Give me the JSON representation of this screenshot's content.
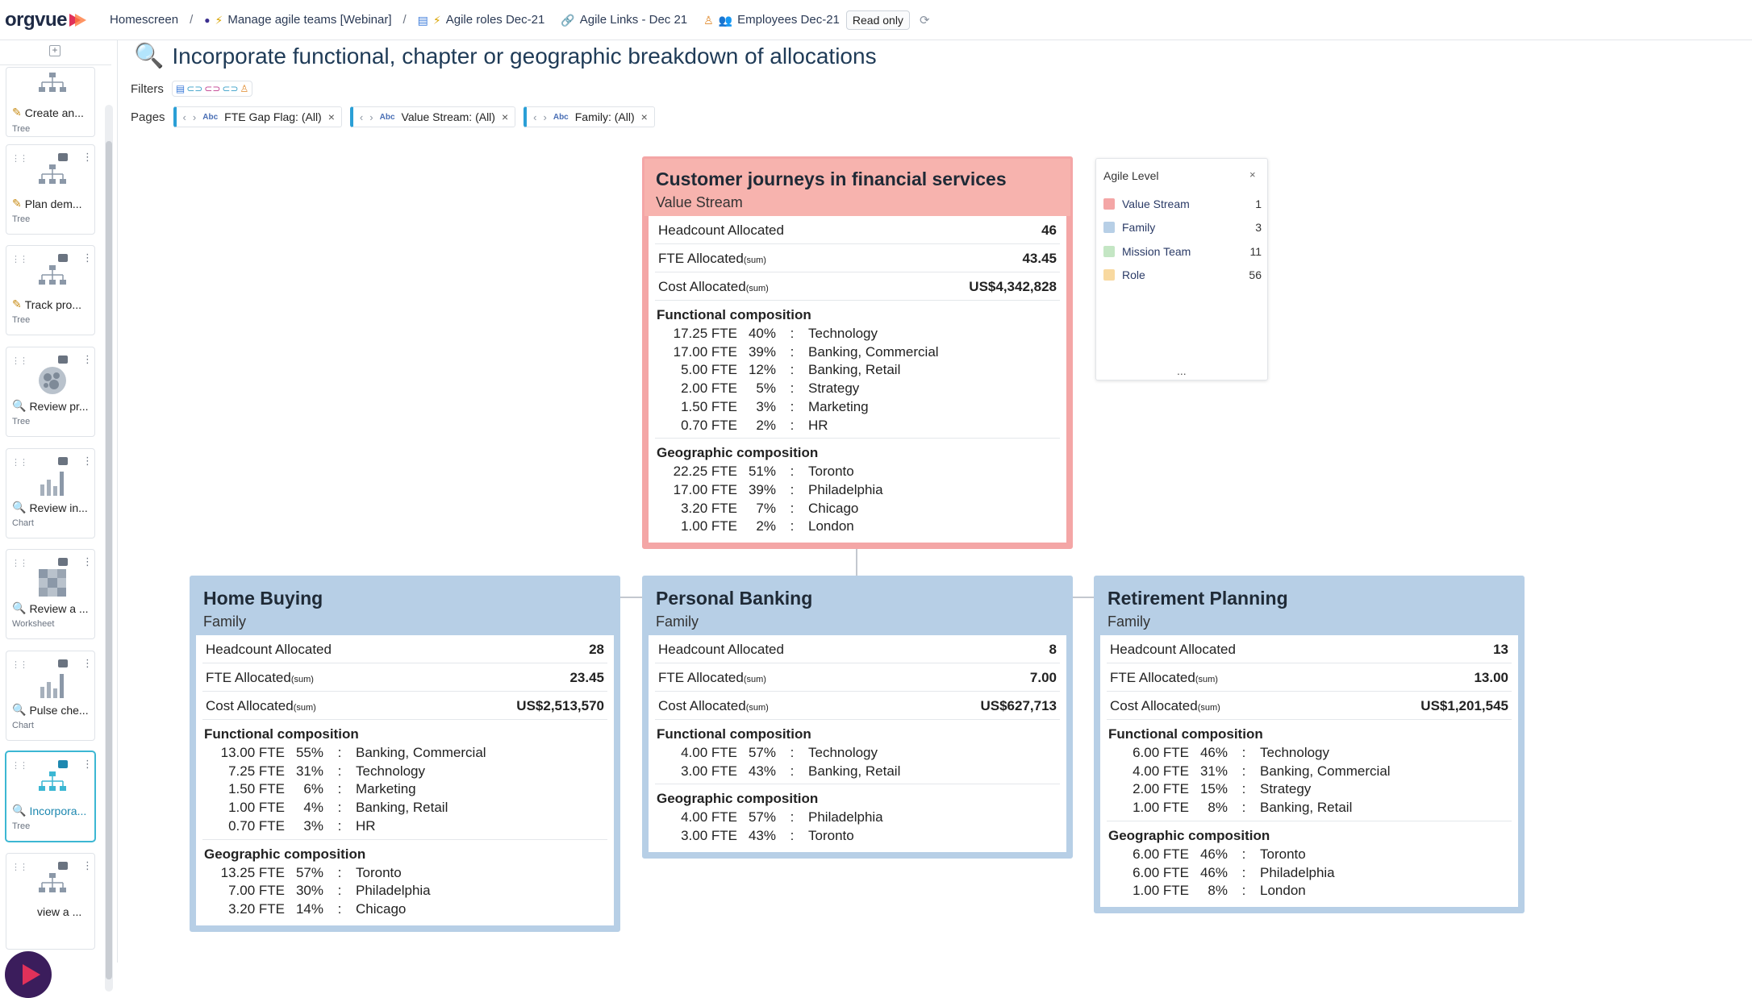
{
  "topbar": {
    "logo": "orgvue",
    "crumbs": [
      {
        "label": "Homescreen",
        "icon": "none"
      },
      {
        "label": "Manage agile teams [Webinar]",
        "icon": "dot-icon"
      },
      {
        "label": "Agile roles Dec-21",
        "icon": "dataset-icon"
      },
      {
        "label": "Agile Links - Dec 21",
        "icon": "link-icon"
      },
      {
        "label": "Employees Dec-21",
        "icon": "people-icon"
      }
    ],
    "separator": "/",
    "read_only": "Read only"
  },
  "sidebar": {
    "cards": [
      {
        "label": "Create an...",
        "kind": "Tree",
        "icon": "pencil-icon",
        "thumb": "tree-thumbnail"
      },
      {
        "label": "Plan dem...",
        "kind": "Tree",
        "icon": "pencil-icon",
        "thumb": "tree-thumbnail"
      },
      {
        "label": "Track pro...",
        "kind": "Tree",
        "icon": "pencil-icon",
        "thumb": "tree-thumbnail"
      },
      {
        "label": "Review pr...",
        "kind": "Tree",
        "icon": "magnifier-icon",
        "thumb": "bubble-thumbnail"
      },
      {
        "label": "Review in...",
        "kind": "Chart",
        "icon": "magnifier-icon",
        "thumb": "bar-chart-thumbnail"
      },
      {
        "label": "Review a ...",
        "kind": "Worksheet",
        "icon": "magnifier-icon",
        "thumb": "grid-thumbnail"
      },
      {
        "label": "Pulse che...",
        "kind": "Chart",
        "icon": "magnifier-icon",
        "thumb": "bar-chart-thumbnail"
      },
      {
        "label": "Incorpora...",
        "kind": "Tree",
        "icon": "magnifier-icon",
        "thumb": "tree-thumbnail",
        "active": true
      },
      {
        "label": "view a ...",
        "kind": "",
        "icon": "magnifier-icon",
        "thumb": "tree-thumbnail"
      }
    ]
  },
  "main": {
    "title": "Incorporate functional, chapter or geographic breakdown of allocations",
    "filters_label": "Filters",
    "pages_label": "Pages",
    "pages": [
      {
        "label": "FTE Gap Flag: (All)"
      },
      {
        "label": "Value Stream: (All)"
      },
      {
        "label": "Family: (All)"
      }
    ],
    "abc": "Abc"
  },
  "labels": {
    "headcount": "Headcount Allocated",
    "fte": "FTE Allocated",
    "cost": "Cost Allocated",
    "sum": "(sum)",
    "functional": "Functional composition",
    "geographic": "Geographic composition",
    "colon": ":"
  },
  "nodes": {
    "root": {
      "name": "Customer journeys in financial services",
      "level": "Value Stream",
      "headcount": "46",
      "fte": "43.45",
      "cost": "US$4,342,828",
      "functional": [
        {
          "fte": "17.25 FTE",
          "pct": "40%",
          "name": "Technology"
        },
        {
          "fte": "17.00 FTE",
          "pct": "39%",
          "name": "Banking, Commercial"
        },
        {
          "fte": "5.00 FTE",
          "pct": "12%",
          "name": "Banking, Retail"
        },
        {
          "fte": "2.00 FTE",
          "pct": "5%",
          "name": "Strategy"
        },
        {
          "fte": "1.50 FTE",
          "pct": "3%",
          "name": "Marketing"
        },
        {
          "fte": "0.70 FTE",
          "pct": "2%",
          "name": "HR"
        }
      ],
      "geographic": [
        {
          "fte": "22.25 FTE",
          "pct": "51%",
          "name": "Toronto"
        },
        {
          "fte": "17.00 FTE",
          "pct": "39%",
          "name": "Philadelphia"
        },
        {
          "fte": "3.20 FTE",
          "pct": "7%",
          "name": "Chicago"
        },
        {
          "fte": "1.00 FTE",
          "pct": "2%",
          "name": "London"
        }
      ]
    },
    "home": {
      "name": "Home Buying",
      "level": "Family",
      "headcount": "28",
      "fte": "23.45",
      "cost": "US$2,513,570",
      "functional": [
        {
          "fte": "13.00 FTE",
          "pct": "55%",
          "name": "Banking, Commercial"
        },
        {
          "fte": "7.25 FTE",
          "pct": "31%",
          "name": "Technology"
        },
        {
          "fte": "1.50 FTE",
          "pct": "6%",
          "name": "Marketing"
        },
        {
          "fte": "1.00 FTE",
          "pct": "4%",
          "name": "Banking, Retail"
        },
        {
          "fte": "0.70 FTE",
          "pct": "3%",
          "name": "HR"
        }
      ],
      "geographic": [
        {
          "fte": "13.25 FTE",
          "pct": "57%",
          "name": "Toronto"
        },
        {
          "fte": "7.00 FTE",
          "pct": "30%",
          "name": "Philadelphia"
        },
        {
          "fte": "3.20 FTE",
          "pct": "14%",
          "name": "Chicago"
        }
      ]
    },
    "personal": {
      "name": "Personal Banking",
      "level": "Family",
      "headcount": "8",
      "fte": "7.00",
      "cost": "US$627,713",
      "functional": [
        {
          "fte": "4.00 FTE",
          "pct": "57%",
          "name": "Technology"
        },
        {
          "fte": "3.00 FTE",
          "pct": "43%",
          "name": "Banking, Retail"
        }
      ],
      "geographic": [
        {
          "fte": "4.00 FTE",
          "pct": "57%",
          "name": "Philadelphia"
        },
        {
          "fte": "3.00 FTE",
          "pct": "43%",
          "name": "Toronto"
        }
      ]
    },
    "retirement": {
      "name": "Retirement Planning",
      "level": "Family",
      "headcount": "13",
      "fte": "13.00",
      "cost": "US$1,201,545",
      "functional": [
        {
          "fte": "6.00 FTE",
          "pct": "46%",
          "name": "Technology"
        },
        {
          "fte": "4.00 FTE",
          "pct": "31%",
          "name": "Banking, Commercial"
        },
        {
          "fte": "2.00 FTE",
          "pct": "15%",
          "name": "Strategy"
        },
        {
          "fte": "1.00 FTE",
          "pct": "8%",
          "name": "Banking, Retail"
        }
      ],
      "geographic": [
        {
          "fte": "6.00 FTE",
          "pct": "46%",
          "name": "Toronto"
        },
        {
          "fte": "6.00 FTE",
          "pct": "46%",
          "name": "Philadelphia"
        },
        {
          "fte": "1.00 FTE",
          "pct": "8%",
          "name": "London"
        }
      ]
    }
  },
  "legend": {
    "title": "Agile Level",
    "close": "×",
    "more": "...",
    "items": [
      {
        "label": "Value Stream",
        "count": "1",
        "color": "#f4a6a6"
      },
      {
        "label": "Family",
        "count": "3",
        "color": "#b7cfe6"
      },
      {
        "label": "Mission Team",
        "count": "11",
        "color": "#c4e6c4"
      },
      {
        "label": "Role",
        "count": "56",
        "color": "#f8d9a0"
      }
    ]
  }
}
